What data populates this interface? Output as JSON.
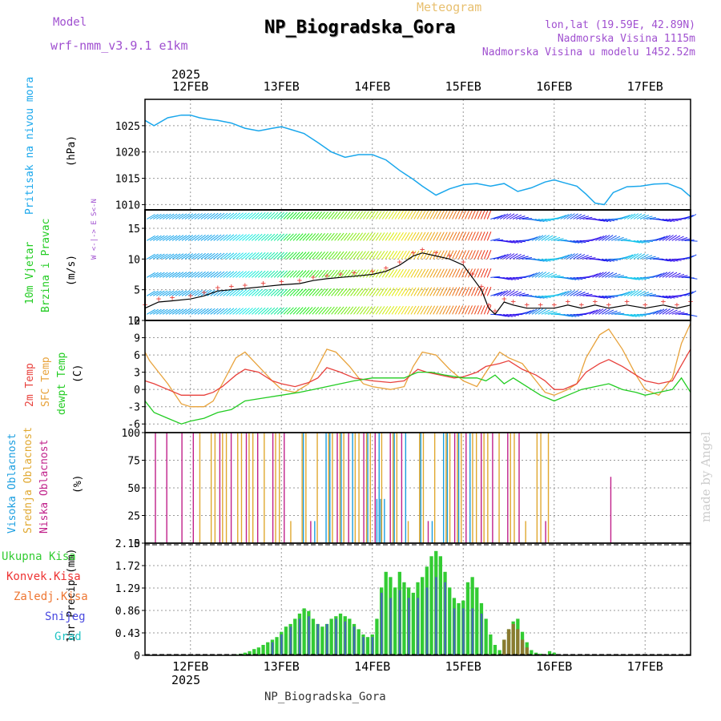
{
  "header": {
    "model_label": "Model",
    "model_name": "wrf-nmm_v3.9.1 e1km",
    "meteogram_label": "Meteogram",
    "station_title": "NP_Biogradska_Gora",
    "lonlat": "lon,lat (19.59E, 42.89N)",
    "altitude": "Nadmorska Visina 1115m",
    "model_altitude": "Nadmorska Visina u modelu 1452.52m",
    "footer_station": "NP_Biogradska_Gora",
    "watermark": "made by Angel",
    "year": "2025"
  },
  "colors": {
    "pressure": "#1aa7ec",
    "temp2m": "#e8413c",
    "sfc": "#e8a33c",
    "dewpt": "#22cc22",
    "high_cloud": "#1a9ee0",
    "mid_cloud": "#e0a830",
    "low_cloud": "#c0208a",
    "total_precip": "#33cc33",
    "convective": "#ee3333",
    "frozen": "#ee7733",
    "snow": "#4a4ae0",
    "hail": "#22c4c4",
    "purple_text": "#a050d0",
    "gold_text": "#e8c070"
  },
  "chart_data": [
    {
      "type": "line",
      "title": "Pritisak na nivou mora",
      "unit_label": "(hPa)",
      "x_labels": [
        "12FEB",
        "13FEB",
        "14FEB",
        "15FEB",
        "16FEB",
        "17FEB"
      ],
      "x_range_days": [
        11.5,
        17.5
      ],
      "ylim": [
        1009,
        1030
      ],
      "yticks": [
        1010,
        1015,
        1020,
        1025
      ],
      "series": [
        {
          "name": "Pritisak na nivou mora",
          "x": [
            11.5,
            11.6,
            11.75,
            11.9,
            12.0,
            12.1,
            12.2,
            12.3,
            12.45,
            12.6,
            12.75,
            12.9,
            13.0,
            13.1,
            13.25,
            13.4,
            13.55,
            13.7,
            13.85,
            14.0,
            14.15,
            14.3,
            14.45,
            14.55,
            14.7,
            14.85,
            15.0,
            15.15,
            15.3,
            15.45,
            15.6,
            15.75,
            15.9,
            16.0,
            16.1,
            16.25,
            16.35,
            16.45,
            16.55,
            16.65,
            16.8,
            16.95,
            17.1,
            17.25,
            17.4,
            17.5
          ],
          "values": [
            1026,
            1025,
            1026.5,
            1027,
            1027,
            1026.5,
            1026.2,
            1026,
            1025.5,
            1024.5,
            1024,
            1024.5,
            1024.8,
            1024.3,
            1023.5,
            1021.8,
            1020,
            1019,
            1019.5,
            1019.5,
            1018.5,
            1016.5,
            1014.8,
            1013.5,
            1011.8,
            1013,
            1013.8,
            1014,
            1013.5,
            1014,
            1012.5,
            1013.2,
            1014.3,
            1014.7,
            1014.2,
            1013.5,
            1012,
            1010.3,
            1010,
            1012.3,
            1013.4,
            1013.5,
            1013.9,
            1014,
            1013,
            1011.5
          ]
        }
      ]
    },
    {
      "type": "line",
      "title": "10m Vjetar Brzina i Pravac",
      "unit_label": "(m/s)",
      "direction_legend": "W <-|-> E  S<-N",
      "ylim": [
        0,
        18
      ],
      "yticks": [
        0,
        5,
        10,
        15
      ],
      "series": [
        {
          "name": "10m Vjetar Brzina i Pravac",
          "x": [
            11.5,
            11.65,
            11.8,
            12.0,
            12.15,
            12.3,
            12.45,
            12.6,
            12.8,
            13.0,
            13.2,
            13.35,
            13.5,
            13.65,
            13.8,
            14.0,
            14.15,
            14.3,
            14.45,
            14.55,
            14.7,
            14.85,
            15.0,
            15.1,
            15.2,
            15.28,
            15.35,
            15.45,
            15.55,
            15.7,
            15.85,
            16.0,
            16.15,
            16.3,
            16.45,
            16.6,
            16.8,
            17.0,
            17.2,
            17.35,
            17.5
          ],
          "values": [
            2,
            3,
            3.2,
            3.5,
            4,
            4.8,
            5,
            5.2,
            5.5,
            5.8,
            6,
            6.5,
            6.8,
            7,
            7.2,
            7.5,
            8,
            9,
            10.5,
            11,
            10.5,
            10,
            9,
            7,
            5,
            2,
            1,
            3,
            2.5,
            2,
            2,
            2,
            2.5,
            2,
            2.5,
            2,
            2.5,
            2,
            2.5,
            2,
            2.5
          ]
        }
      ]
    },
    {
      "type": "line",
      "title": "2m Temp / SFC Temp / dewpt Temp",
      "unit_label": "(C)",
      "ylim": [
        -7.5,
        12
      ],
      "yticks": [
        -6,
        -3,
        0,
        3,
        6,
        9,
        12
      ],
      "series": [
        {
          "name": "2m Temp",
          "x": [
            11.5,
            11.6,
            11.75,
            11.9,
            12.0,
            12.15,
            12.25,
            12.35,
            12.5,
            12.6,
            12.75,
            12.9,
            13.0,
            13.15,
            13.3,
            13.4,
            13.5,
            13.65,
            13.8,
            14.0,
            14.2,
            14.35,
            14.5,
            14.6,
            14.75,
            14.9,
            15.0,
            15.15,
            15.25,
            15.4,
            15.5,
            15.65,
            15.8,
            15.9,
            16.0,
            16.1,
            16.25,
            16.35,
            16.5,
            16.6,
            16.75,
            16.9,
            17.0,
            17.15,
            17.3,
            17.5
          ],
          "values": [
            1.5,
            1,
            0,
            -1,
            -1,
            -1,
            -0.5,
            0.5,
            2.5,
            3.5,
            3,
            1.5,
            1,
            0.5,
            1.2,
            2,
            3.8,
            3,
            2,
            1.5,
            1.2,
            1.5,
            3.5,
            3,
            2.5,
            2,
            2.2,
            3,
            4,
            4.5,
            5,
            3.5,
            2.5,
            1.5,
            0,
            0,
            1,
            3,
            4.5,
            5.2,
            4,
            2.5,
            1.5,
            1,
            1.5,
            7
          ]
        },
        {
          "name": "SFC Temp",
          "x": [
            11.5,
            11.55,
            11.65,
            11.75,
            11.9,
            12.0,
            12.15,
            12.25,
            12.35,
            12.5,
            12.6,
            12.75,
            12.9,
            13.0,
            13.15,
            13.3,
            13.4,
            13.5,
            13.6,
            13.75,
            13.9,
            14.0,
            14.2,
            14.35,
            14.45,
            14.55,
            14.7,
            14.85,
            15.0,
            15.15,
            15.25,
            15.4,
            15.5,
            15.65,
            15.8,
            15.9,
            16.0,
            16.15,
            16.25,
            16.35,
            16.5,
            16.6,
            16.75,
            16.9,
            17.0,
            17.15,
            17.3,
            17.4,
            17.5
          ],
          "values": [
            6.5,
            5,
            3,
            1,
            -2.5,
            -3,
            -3,
            -2,
            1,
            5.5,
            6.5,
            4,
            1.5,
            0,
            -0.5,
            1,
            4,
            7,
            6.5,
            4,
            1,
            0.5,
            0,
            0.5,
            4,
            6.5,
            6,
            3.5,
            1.5,
            0.5,
            3,
            6.5,
            5.5,
            4.5,
            1.5,
            -0.5,
            -1,
            0,
            1,
            5.5,
            9.5,
            10.5,
            7,
            2.5,
            0,
            -1,
            2,
            8,
            11.5
          ]
        },
        {
          "name": "dewpt Temp",
          "x": [
            11.5,
            11.6,
            11.75,
            11.9,
            12.0,
            12.15,
            12.3,
            12.45,
            12.6,
            12.8,
            13.0,
            13.2,
            13.35,
            13.5,
            13.65,
            13.8,
            14.0,
            14.2,
            14.35,
            14.5,
            14.65,
            14.8,
            15.0,
            15.15,
            15.25,
            15.35,
            15.45,
            15.55,
            15.7,
            15.85,
            16.0,
            16.15,
            16.3,
            16.45,
            16.6,
            16.75,
            16.9,
            17.0,
            17.15,
            17.3,
            17.4,
            17.5
          ],
          "values": [
            -2,
            -4,
            -5,
            -6,
            -5.5,
            -5,
            -4,
            -3.5,
            -2,
            -1.5,
            -1,
            -0.5,
            0,
            0.5,
            1,
            1.5,
            2,
            2,
            2,
            3,
            3,
            2.5,
            2,
            2,
            1.5,
            2.5,
            1,
            2,
            0.5,
            -1,
            -2,
            -1,
            0,
            0.5,
            1,
            0,
            -0.5,
            -1,
            -0.5,
            0,
            2,
            -0.5
          ]
        }
      ]
    },
    {
      "type": "bar",
      "title": "Visoka Oblacnost / Srednja Oblacnost / Niska Oblacnost",
      "unit_label": "(%)",
      "ylim": [
        0,
        100
      ],
      "yticks": [
        0,
        25,
        50,
        75,
        100
      ],
      "note": "Hourly cloud cover bars; mostly 100% for mid/low layers from 12FEB 12h to 15FEB 20h, sparse afterwards.",
      "series": [
        {
          "name": "Visoka Oblacnost",
          "segments": [
            {
              "from": 13.2,
              "to": 15.2,
              "level": 100,
              "density": 0.5
            },
            {
              "from": 14.05,
              "to": 14.15,
              "level": 40
            }
          ]
        },
        {
          "name": "Srednja Oblacnost",
          "segments": [
            {
              "from": 12.05,
              "to": 15.95,
              "level": 100,
              "density": 0.7
            }
          ]
        },
        {
          "name": "Niska Oblacnost",
          "segments": [
            {
              "from": 11.55,
              "to": 16.0,
              "level": 100,
              "density": 0.35
            },
            {
              "from": 16.6,
              "to": 16.62,
              "level": 60
            }
          ]
        }
      ]
    },
    {
      "type": "bar",
      "title": "1hr Precip",
      "unit_label": "(mm)",
      "ylim": [
        0,
        2.15
      ],
      "yticks": [
        0,
        0.43,
        0.86,
        1.29,
        1.72,
        2.15
      ],
      "legend": [
        "Ukupna Kisa",
        "Konvek.Kisa",
        "Zaledj.Kisa",
        "Snijeg",
        "Grad"
      ],
      "series": [
        {
          "name": "Ukupna Kisa",
          "x": [
            12.5,
            12.55,
            12.6,
            12.65,
            12.7,
            12.75,
            12.8,
            12.85,
            12.9,
            12.95,
            13.0,
            13.05,
            13.1,
            13.15,
            13.2,
            13.25,
            13.3,
            13.35,
            13.4,
            13.45,
            13.5,
            13.55,
            13.6,
            13.65,
            13.7,
            13.75,
            13.8,
            13.85,
            13.9,
            13.95,
            14.0,
            14.05,
            14.1,
            14.15,
            14.2,
            14.25,
            14.3,
            14.35,
            14.4,
            14.45,
            14.5,
            14.55,
            14.6,
            14.65,
            14.7,
            14.75,
            14.8,
            14.85,
            14.9,
            14.95,
            15.0,
            15.05,
            15.1,
            15.15,
            15.2,
            15.25,
            15.3,
            15.35,
            15.4,
            15.45,
            15.5,
            15.55,
            15.6,
            15.65,
            15.7,
            15.75,
            15.8,
            15.85,
            15.9,
            15.95,
            16.0
          ],
          "values": [
            0.02,
            0.03,
            0.05,
            0.08,
            0.12,
            0.15,
            0.2,
            0.25,
            0.3,
            0.35,
            0.45,
            0.55,
            0.6,
            0.7,
            0.8,
            0.9,
            0.85,
            0.7,
            0.6,
            0.55,
            0.6,
            0.7,
            0.75,
            0.8,
            0.75,
            0.7,
            0.6,
            0.5,
            0.4,
            0.35,
            0.4,
            0.7,
            1.3,
            1.6,
            1.5,
            1.3,
            1.6,
            1.4,
            1.3,
            1.2,
            1.4,
            1.5,
            1.7,
            1.9,
            2.0,
            1.9,
            1.6,
            1.3,
            1.1,
            1.0,
            1.05,
            1.4,
            1.5,
            1.3,
            1.0,
            0.7,
            0.4,
            0.2,
            0.1,
            0.3,
            0.5,
            0.65,
            0.7,
            0.45,
            0.25,
            0.1,
            0.05,
            0.03,
            0.02,
            0.08,
            0.05
          ]
        },
        {
          "name": "Snijeg",
          "x": [
            12.9,
            13.0,
            13.1,
            13.2,
            13.3,
            13.4,
            13.5,
            13.6,
            13.7,
            13.8,
            13.9,
            14.0,
            14.1,
            14.2,
            14.3,
            14.4,
            14.5,
            14.6,
            14.7,
            14.8,
            14.9,
            15.0,
            15.1,
            15.2
          ],
          "values": [
            0.25,
            0.4,
            0.55,
            0.7,
            0.75,
            0.6,
            0.6,
            0.7,
            0.65,
            0.55,
            0.35,
            0.35,
            1.2,
            1.1,
            1.25,
            1.1,
            1.1,
            1.3,
            1.5,
            1.4,
            0.9,
            0.9,
            0.9,
            0.8
          ]
        },
        {
          "name": "Zaledj.Kisa",
          "x": [
            15.45,
            15.5,
            15.55,
            15.6,
            15.65,
            15.7
          ],
          "values": [
            0.3,
            0.5,
            0.6,
            0.5,
            0.3,
            0.15
          ]
        }
      ]
    }
  ]
}
